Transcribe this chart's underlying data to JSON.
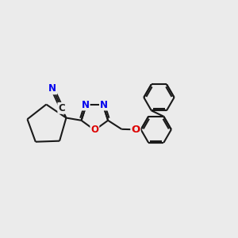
{
  "bg_color": "#ebebeb",
  "bond_color": "#1a1a1a",
  "bond_width": 1.5,
  "atom_colors": {
    "N": "#0000ee",
    "O": "#dd0000",
    "C": "#222222"
  },
  "font_size_atom": 8.5,
  "figsize": [
    3.0,
    3.0
  ],
  "dpi": 100,
  "xlim": [
    0,
    12
  ],
  "ylim": [
    0,
    12
  ]
}
